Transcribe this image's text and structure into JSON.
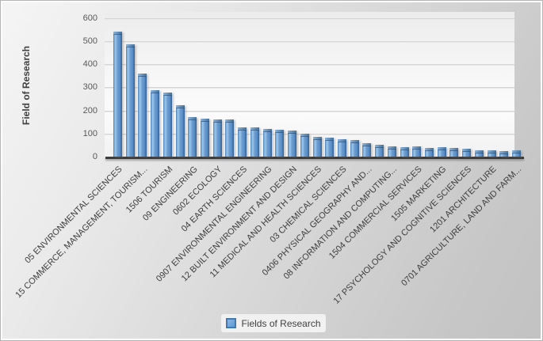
{
  "chart_data": {
    "type": "bar",
    "title": "",
    "y_axis_title": "Field of Research",
    "legend": {
      "label": "Fields of Research",
      "position": "bottom",
      "swatch_color": "#5b9bd5"
    },
    "ylim": [
      0,
      600
    ],
    "y_ticks": [
      0,
      100,
      200,
      300,
      400,
      500,
      600
    ],
    "grid": true,
    "bar_color": "#5b9bd5",
    "bar_edge_color": "#41719c",
    "bars": [
      {
        "label": "05 ENVIRONMENTAL SCIENCES",
        "value": 540
      },
      {
        "label": "",
        "value": 487
      },
      {
        "label": "15 COMMERCE, MANAGEMENT, TOURISM...",
        "value": 358
      },
      {
        "label": "",
        "value": 287
      },
      {
        "label": "1506 TOURISM",
        "value": 278
      },
      {
        "label": "",
        "value": 221
      },
      {
        "label": "09 ENGINEERING",
        "value": 171
      },
      {
        "label": "",
        "value": 164
      },
      {
        "label": "0602 ECOLOGY",
        "value": 159
      },
      {
        "label": "",
        "value": 162
      },
      {
        "label": "04 EARTH SCIENCES",
        "value": 128
      },
      {
        "label": "",
        "value": 126
      },
      {
        "label": "0907 ENVIRONMENTAL ENGINEERING",
        "value": 120
      },
      {
        "label": "",
        "value": 115
      },
      {
        "label": "12 BUILT ENVIRONMENT AND DESIGN",
        "value": 112
      },
      {
        "label": "",
        "value": 98
      },
      {
        "label": "11 MEDICAL AND HEALTH SCIENCES",
        "value": 84
      },
      {
        "label": "",
        "value": 82
      },
      {
        "label": "03 CHEMICAL SCIENCES",
        "value": 76
      },
      {
        "label": "",
        "value": 72
      },
      {
        "label": "0406 PHYSICAL GEOGRAPHY AND...",
        "value": 58
      },
      {
        "label": "",
        "value": 50
      },
      {
        "label": "08 INFORMATION AND COMPUTING...",
        "value": 45
      },
      {
        "label": "",
        "value": 41
      },
      {
        "label": "1504 COMMERCIAL SERVICES",
        "value": 44
      },
      {
        "label": "",
        "value": 38
      },
      {
        "label": "1505 MARKETING",
        "value": 41
      },
      {
        "label": "",
        "value": 37
      },
      {
        "label": "17 PSYCHOLOGY AND COGNITIVE SCIENCES",
        "value": 33
      },
      {
        "label": "",
        "value": 29
      },
      {
        "label": "1201 ARCHITECTURE",
        "value": 26
      },
      {
        "label": "",
        "value": 25
      },
      {
        "label": "0701 AGRICULTURE, LAND AND FARM...",
        "value": 28
      }
    ]
  }
}
